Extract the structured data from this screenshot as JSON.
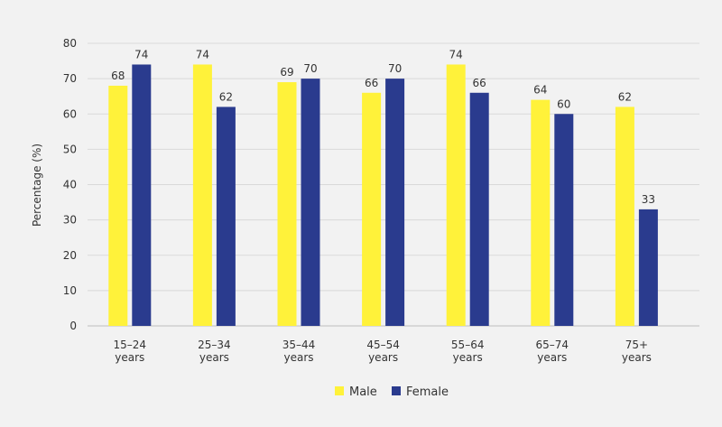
{
  "chart_data": {
    "type": "bar",
    "title": "",
    "xlabel": "",
    "ylabel": "Percentage (%)",
    "ylim": [
      0,
      80
    ],
    "yticks": [
      0,
      10,
      20,
      30,
      40,
      50,
      60,
      70,
      80
    ],
    "grid": true,
    "legend_position": "bottom-center",
    "categories": [
      [
        "15–24",
        "years"
      ],
      [
        "25–34",
        "years"
      ],
      [
        "35–44",
        "years"
      ],
      [
        "45–54",
        "years"
      ],
      [
        "55–64",
        "years"
      ],
      [
        "65–74",
        "years"
      ],
      [
        "75+",
        "years"
      ]
    ],
    "series": [
      {
        "name": "Male",
        "color": "#fff23a",
        "values": [
          68,
          74,
          69,
          66,
          74,
          64,
          62
        ]
      },
      {
        "name": "Female",
        "color": "#2a3b8e",
        "values": [
          74,
          62,
          70,
          70,
          66,
          60,
          33
        ]
      }
    ]
  }
}
